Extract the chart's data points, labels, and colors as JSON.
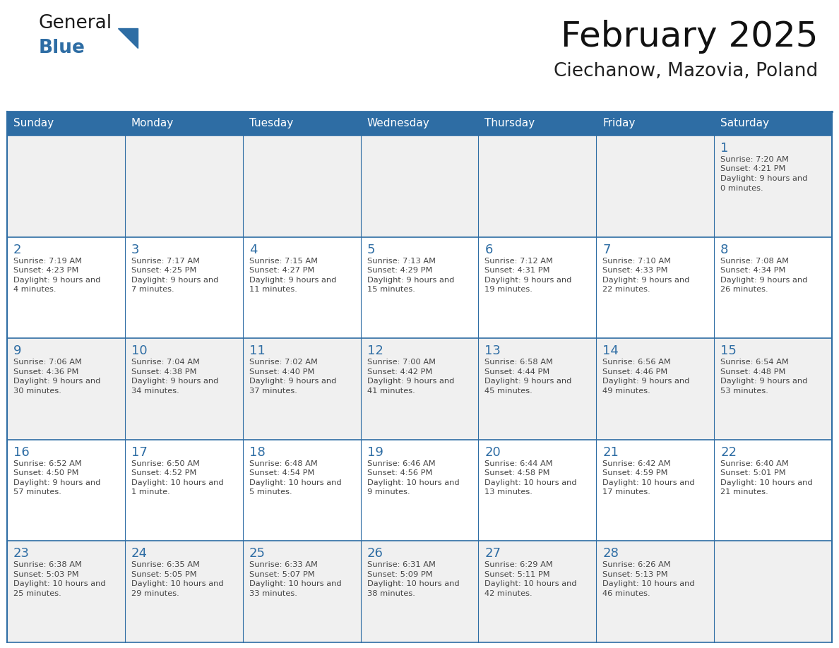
{
  "title": "February 2025",
  "subtitle": "Ciechanow, Mazovia, Poland",
  "days_of_week": [
    "Sunday",
    "Monday",
    "Tuesday",
    "Wednesday",
    "Thursday",
    "Friday",
    "Saturday"
  ],
  "header_bg": "#2E6DA4",
  "header_text": "#FFFFFF",
  "cell_bg_light": "#F0F0F0",
  "cell_bg_white": "#FFFFFF",
  "border_color": "#2E6DA4",
  "day_number_color": "#2E6DA4",
  "cell_text_color": "#444444",
  "logo_general_color": "#1a1a1a",
  "logo_blue_color": "#2E6DA4",
  "calendar_data": [
    [
      null,
      null,
      null,
      null,
      null,
      null,
      {
        "day": 1,
        "sunrise": "7:20 AM",
        "sunset": "4:21 PM",
        "daylight_a": "9 hours and",
        "daylight_b": "0 minutes."
      }
    ],
    [
      {
        "day": 2,
        "sunrise": "7:19 AM",
        "sunset": "4:23 PM",
        "daylight_a": "9 hours and",
        "daylight_b": "4 minutes."
      },
      {
        "day": 3,
        "sunrise": "7:17 AM",
        "sunset": "4:25 PM",
        "daylight_a": "9 hours and",
        "daylight_b": "7 minutes."
      },
      {
        "day": 4,
        "sunrise": "7:15 AM",
        "sunset": "4:27 PM",
        "daylight_a": "9 hours and",
        "daylight_b": "11 minutes."
      },
      {
        "day": 5,
        "sunrise": "7:13 AM",
        "sunset": "4:29 PM",
        "daylight_a": "9 hours and",
        "daylight_b": "15 minutes."
      },
      {
        "day": 6,
        "sunrise": "7:12 AM",
        "sunset": "4:31 PM",
        "daylight_a": "9 hours and",
        "daylight_b": "19 minutes."
      },
      {
        "day": 7,
        "sunrise": "7:10 AM",
        "sunset": "4:33 PM",
        "daylight_a": "9 hours and",
        "daylight_b": "22 minutes."
      },
      {
        "day": 8,
        "sunrise": "7:08 AM",
        "sunset": "4:34 PM",
        "daylight_a": "9 hours and",
        "daylight_b": "26 minutes."
      }
    ],
    [
      {
        "day": 9,
        "sunrise": "7:06 AM",
        "sunset": "4:36 PM",
        "daylight_a": "9 hours and",
        "daylight_b": "30 minutes."
      },
      {
        "day": 10,
        "sunrise": "7:04 AM",
        "sunset": "4:38 PM",
        "daylight_a": "9 hours and",
        "daylight_b": "34 minutes."
      },
      {
        "day": 11,
        "sunrise": "7:02 AM",
        "sunset": "4:40 PM",
        "daylight_a": "9 hours and",
        "daylight_b": "37 minutes."
      },
      {
        "day": 12,
        "sunrise": "7:00 AM",
        "sunset": "4:42 PM",
        "daylight_a": "9 hours and",
        "daylight_b": "41 minutes."
      },
      {
        "day": 13,
        "sunrise": "6:58 AM",
        "sunset": "4:44 PM",
        "daylight_a": "9 hours and",
        "daylight_b": "45 minutes."
      },
      {
        "day": 14,
        "sunrise": "6:56 AM",
        "sunset": "4:46 PM",
        "daylight_a": "9 hours and",
        "daylight_b": "49 minutes."
      },
      {
        "day": 15,
        "sunrise": "6:54 AM",
        "sunset": "4:48 PM",
        "daylight_a": "9 hours and",
        "daylight_b": "53 minutes."
      }
    ],
    [
      {
        "day": 16,
        "sunrise": "6:52 AM",
        "sunset": "4:50 PM",
        "daylight_a": "9 hours and",
        "daylight_b": "57 minutes."
      },
      {
        "day": 17,
        "sunrise": "6:50 AM",
        "sunset": "4:52 PM",
        "daylight_a": "10 hours and",
        "daylight_b": "1 minute."
      },
      {
        "day": 18,
        "sunrise": "6:48 AM",
        "sunset": "4:54 PM",
        "daylight_a": "10 hours and",
        "daylight_b": "5 minutes."
      },
      {
        "day": 19,
        "sunrise": "6:46 AM",
        "sunset": "4:56 PM",
        "daylight_a": "10 hours and",
        "daylight_b": "9 minutes."
      },
      {
        "day": 20,
        "sunrise": "6:44 AM",
        "sunset": "4:58 PM",
        "daylight_a": "10 hours and",
        "daylight_b": "13 minutes."
      },
      {
        "day": 21,
        "sunrise": "6:42 AM",
        "sunset": "4:59 PM",
        "daylight_a": "10 hours and",
        "daylight_b": "17 minutes."
      },
      {
        "day": 22,
        "sunrise": "6:40 AM",
        "sunset": "5:01 PM",
        "daylight_a": "10 hours and",
        "daylight_b": "21 minutes."
      }
    ],
    [
      {
        "day": 23,
        "sunrise": "6:38 AM",
        "sunset": "5:03 PM",
        "daylight_a": "10 hours and",
        "daylight_b": "25 minutes."
      },
      {
        "day": 24,
        "sunrise": "6:35 AM",
        "sunset": "5:05 PM",
        "daylight_a": "10 hours and",
        "daylight_b": "29 minutes."
      },
      {
        "day": 25,
        "sunrise": "6:33 AM",
        "sunset": "5:07 PM",
        "daylight_a": "10 hours and",
        "daylight_b": "33 minutes."
      },
      {
        "day": 26,
        "sunrise": "6:31 AM",
        "sunset": "5:09 PM",
        "daylight_a": "10 hours and",
        "daylight_b": "38 minutes."
      },
      {
        "day": 27,
        "sunrise": "6:29 AM",
        "sunset": "5:11 PM",
        "daylight_a": "10 hours and",
        "daylight_b": "42 minutes."
      },
      {
        "day": 28,
        "sunrise": "6:26 AM",
        "sunset": "5:13 PM",
        "daylight_a": "10 hours and",
        "daylight_b": "46 minutes."
      },
      null
    ]
  ]
}
